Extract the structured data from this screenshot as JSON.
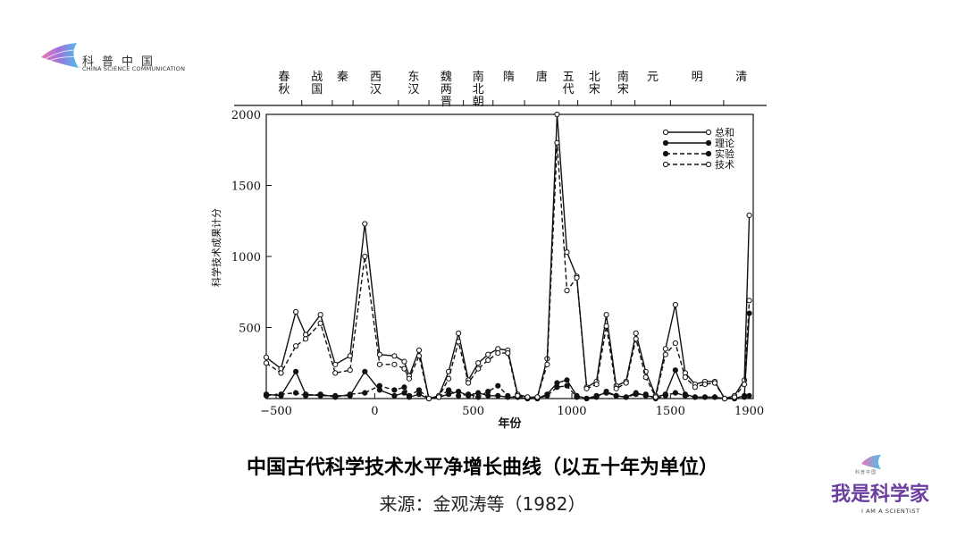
{
  "logo": {
    "cn": "科普中国",
    "en": "CHINA SCIENCE COMMUNICATION"
  },
  "brand": {
    "cn": "我是科学家",
    "en": "I AM A SCIENTIST",
    "small": "科普中国"
  },
  "caption": {
    "title": "中国古代科学技术水平净增长曲线（以五十年为单位）",
    "source": "来源：金观涛等（1982）"
  },
  "chart_data": {
    "type": "line",
    "xlabel": "年份",
    "ylabel": "科学技术成果计分",
    "xlim": [
      -550,
      1920
    ],
    "ylim": [
      0,
      2000
    ],
    "xticks": [
      -500,
      0,
      500,
      1000,
      1500,
      1900
    ],
    "yticks": [
      500,
      1000,
      1500,
      2000
    ],
    "legend_position": "top-right",
    "dynasties": [
      {
        "label": "春秋",
        "x": -550
      },
      {
        "label": "战国",
        "x": -370
      },
      {
        "label": "秦",
        "x": -215
      },
      {
        "label": "西汉",
        "x": -110
      },
      {
        "label": "东汉",
        "x": 120
      },
      {
        "label": "魏两晋",
        "x": 275
      },
      {
        "label": "南北朝",
        "x": 450
      },
      {
        "label": "隋",
        "x": 600
      },
      {
        "label": "唐",
        "x": 760
      },
      {
        "label": "五代",
        "x": 935
      },
      {
        "label": "北宋",
        "x": 1030
      },
      {
        "label": "南宋",
        "x": 1200
      },
      {
        "label": "元",
        "x": 1320
      },
      {
        "label": "明",
        "x": 1500
      },
      {
        "label": "清",
        "x": 1770
      }
    ],
    "series": [
      {
        "name": "总和",
        "marker": "open",
        "dash": false,
        "x": [
          -550,
          -475,
          -400,
          -350,
          -275,
          -200,
          -125,
          -50,
          25,
          100,
          150,
          175,
          225,
          275,
          325,
          375,
          425,
          475,
          525,
          575,
          625,
          675,
          725,
          775,
          825,
          875,
          925,
          975,
          1025,
          1075,
          1125,
          1175,
          1225,
          1275,
          1325,
          1375,
          1425,
          1475,
          1525,
          1575,
          1625,
          1675,
          1725,
          1775,
          1825,
          1875,
          1900
        ],
        "y": [
          290,
          210,
          610,
          450,
          590,
          240,
          300,
          1230,
          310,
          300,
          260,
          160,
          340,
          0,
          20,
          190,
          460,
          130,
          250,
          310,
          350,
          340,
          30,
          10,
          10,
          280,
          2000,
          1030,
          860,
          80,
          120,
          590,
          90,
          120,
          460,
          190,
          20,
          350,
          660,
          180,
          100,
          120,
          120,
          0,
          20,
          130,
          1290
        ]
      },
      {
        "name": "理论",
        "marker": "filled",
        "dash": false,
        "x": [
          -550,
          -475,
          -400,
          -350,
          -275,
          -200,
          -125,
          -50,
          25,
          100,
          150,
          175,
          225,
          275,
          325,
          375,
          425,
          475,
          525,
          575,
          625,
          675,
          725,
          775,
          825,
          875,
          925,
          975,
          1025,
          1075,
          1125,
          1175,
          1225,
          1275,
          1325,
          1375,
          1425,
          1475,
          1525,
          1575,
          1625,
          1675,
          1725,
          1775,
          1825,
          1875,
          1900
        ],
        "y": [
          30,
          20,
          190,
          30,
          20,
          20,
          20,
          190,
          60,
          20,
          40,
          10,
          30,
          0,
          10,
          30,
          50,
          20,
          40,
          20,
          20,
          10,
          10,
          0,
          0,
          30,
          110,
          130,
          20,
          0,
          20,
          40,
          20,
          10,
          40,
          20,
          10,
          30,
          200,
          30,
          10,
          10,
          10,
          0,
          0,
          20,
          600
        ]
      },
      {
        "name": "实验",
        "marker": "filled",
        "dash": true,
        "x": [
          -550,
          -475,
          -400,
          -350,
          -275,
          -200,
          -125,
          -50,
          25,
          100,
          150,
          175,
          225,
          275,
          325,
          375,
          425,
          475,
          525,
          575,
          625,
          675,
          725,
          775,
          825,
          875,
          925,
          975,
          1025,
          1075,
          1125,
          1175,
          1225,
          1275,
          1325,
          1375,
          1425,
          1475,
          1525,
          1575,
          1625,
          1675,
          1725,
          1775,
          1825,
          1875,
          1900
        ],
        "y": [
          20,
          30,
          40,
          20,
          30,
          10,
          30,
          40,
          90,
          60,
          80,
          20,
          60,
          0,
          10,
          60,
          20,
          30,
          10,
          50,
          90,
          20,
          10,
          0,
          0,
          20,
          80,
          90,
          10,
          0,
          10,
          50,
          20,
          10,
          30,
          30,
          0,
          20,
          40,
          20,
          10,
          10,
          10,
          0,
          0,
          10,
          20
        ]
      },
      {
        "name": "技术",
        "marker": "open",
        "dash": true,
        "x": [
          -550,
          -475,
          -400,
          -350,
          -275,
          -200,
          -125,
          -50,
          25,
          100,
          150,
          175,
          225,
          275,
          325,
          375,
          425,
          475,
          525,
          575,
          625,
          675,
          725,
          775,
          825,
          875,
          925,
          975,
          1025,
          1075,
          1125,
          1175,
          1225,
          1275,
          1325,
          1375,
          1425,
          1475,
          1525,
          1575,
          1625,
          1675,
          1725,
          1775,
          1825,
          1875,
          1900
        ],
        "y": [
          250,
          180,
          370,
          420,
          530,
          180,
          200,
          1000,
          240,
          240,
          210,
          140,
          300,
          0,
          10,
          140,
          400,
          110,
          210,
          270,
          320,
          320,
          20,
          10,
          10,
          240,
          1800,
          760,
          850,
          70,
          100,
          510,
          70,
          110,
          420,
          150,
          10,
          310,
          390,
          150,
          80,
          100,
          110,
          0,
          10,
          100,
          690
        ]
      }
    ]
  }
}
